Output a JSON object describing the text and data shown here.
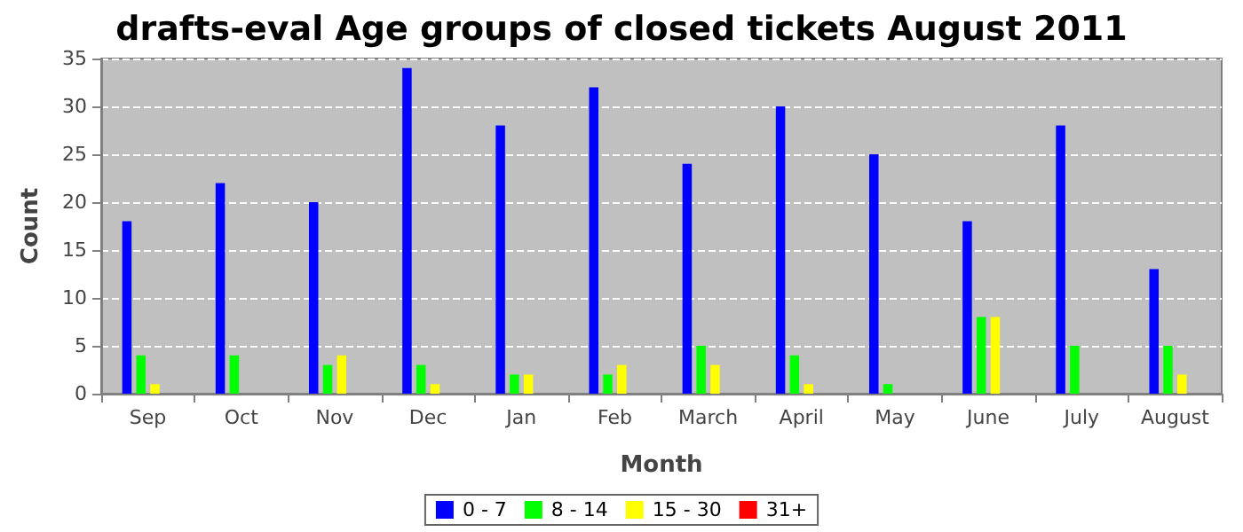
{
  "chart_data": {
    "type": "bar",
    "title": "drafts-eval Age groups of closed tickets August 2011",
    "xlabel": "Month",
    "ylabel": "Count",
    "categories": [
      "Sep",
      "Oct",
      "Nov",
      "Dec",
      "Jan",
      "Feb",
      "March",
      "April",
      "May",
      "June",
      "July",
      "August"
    ],
    "series": [
      {
        "name": "0 - 7",
        "color": "#0000ff",
        "values": [
          18,
          22,
          20,
          34,
          28,
          32,
          24,
          30,
          25,
          18,
          28,
          13
        ]
      },
      {
        "name": "8 - 14",
        "color": "#00ff00",
        "values": [
          4,
          4,
          3,
          3,
          2,
          2,
          5,
          4,
          1,
          8,
          5,
          5
        ]
      },
      {
        "name": "15 - 30",
        "color": "#ffff00",
        "values": [
          1,
          0,
          4,
          1,
          2,
          3,
          3,
          1,
          0,
          8,
          0,
          2
        ]
      },
      {
        "name": "31+",
        "color": "#ff0000",
        "values": [
          0,
          0,
          0,
          0,
          0,
          0,
          0,
          0,
          0,
          0,
          0,
          0
        ]
      }
    ],
    "ylim": [
      0,
      35
    ],
    "yticks": [
      0,
      5,
      10,
      15,
      20,
      25,
      30,
      35
    ],
    "grid": "y",
    "legend": "bottom"
  }
}
